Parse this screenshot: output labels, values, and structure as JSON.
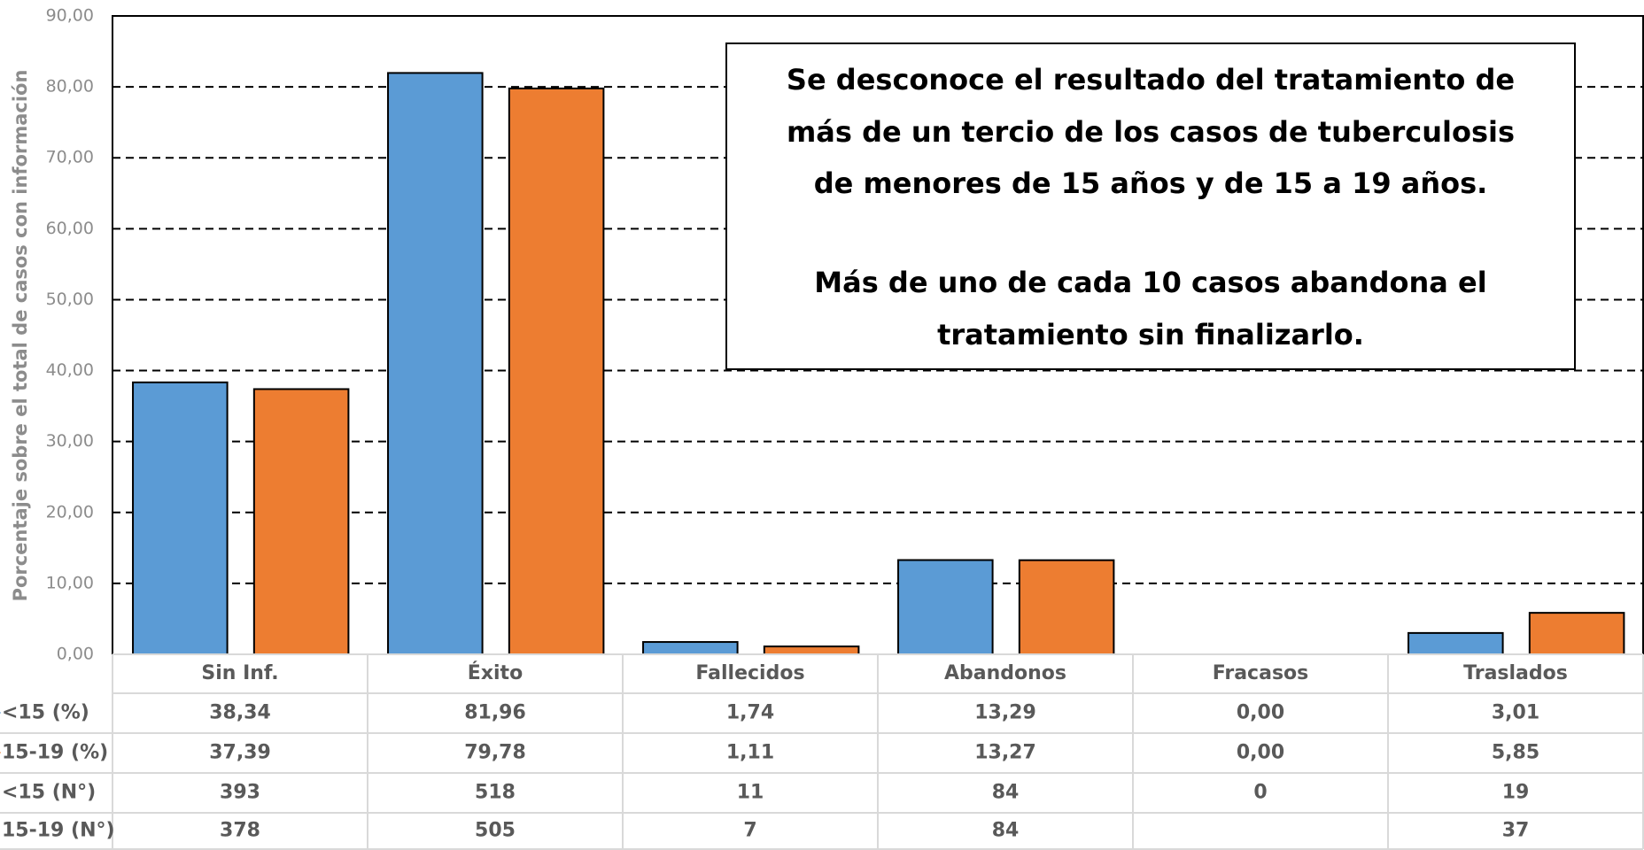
{
  "chart_data": {
    "type": "bar",
    "y_label": "Porcentaje sobre el total de casos con información",
    "categories": [
      "Sin Inf.",
      "Éxito",
      "Fallecidos",
      "Abandonos",
      "Fracasos",
      "Traslados"
    ],
    "series": [
      {
        "name": "<15 (%)",
        "color": "#5b9bd5",
        "values": [
          38.34,
          81.96,
          1.74,
          13.29,
          0.0,
          3.01
        ],
        "value_labels": [
          "38,34",
          "81,96",
          "1,74",
          "13,29",
          "0,00",
          "3,01"
        ]
      },
      {
        "name": "15-19 (%)",
        "color": "#ed7d31",
        "values": [
          37.39,
          79.78,
          1.11,
          13.27,
          0.0,
          5.85
        ],
        "value_labels": [
          "37,39",
          "79,78",
          "1,11",
          "13,27",
          "0,00",
          "5,85"
        ]
      }
    ],
    "counts": [
      {
        "name": "<15 (N°)",
        "values": [
          393,
          518,
          11,
          84,
          0,
          19
        ]
      },
      {
        "name": "15-19 (N°)",
        "values": [
          378,
          505,
          7,
          84,
          null,
          37
        ]
      }
    ],
    "ylim": [
      0,
      90
    ],
    "yticks": [
      {
        "value": 0,
        "label": "0,00"
      },
      {
        "value": 10,
        "label": "10,00"
      },
      {
        "value": 20,
        "label": "20,00"
      },
      {
        "value": 30,
        "label": "30,00"
      },
      {
        "value": 40,
        "label": "40,00"
      },
      {
        "value": 50,
        "label": "50,00"
      },
      {
        "value": 60,
        "label": "60,00"
      },
      {
        "value": 70,
        "label": "70,00"
      },
      {
        "value": 80,
        "label": "80,00"
      },
      {
        "value": 90,
        "label": "90,00"
      }
    ],
    "grid": true,
    "annotation": [
      "Se desconoce el resultado del tratamiento de",
      "más de un tercio de los casos de tuberculosis",
      "de menores de 15 años y de 15 a 19 años.",
      "Más de uno de cada 10 casos abandona el",
      "tratamiento sin finalizarlo."
    ]
  }
}
